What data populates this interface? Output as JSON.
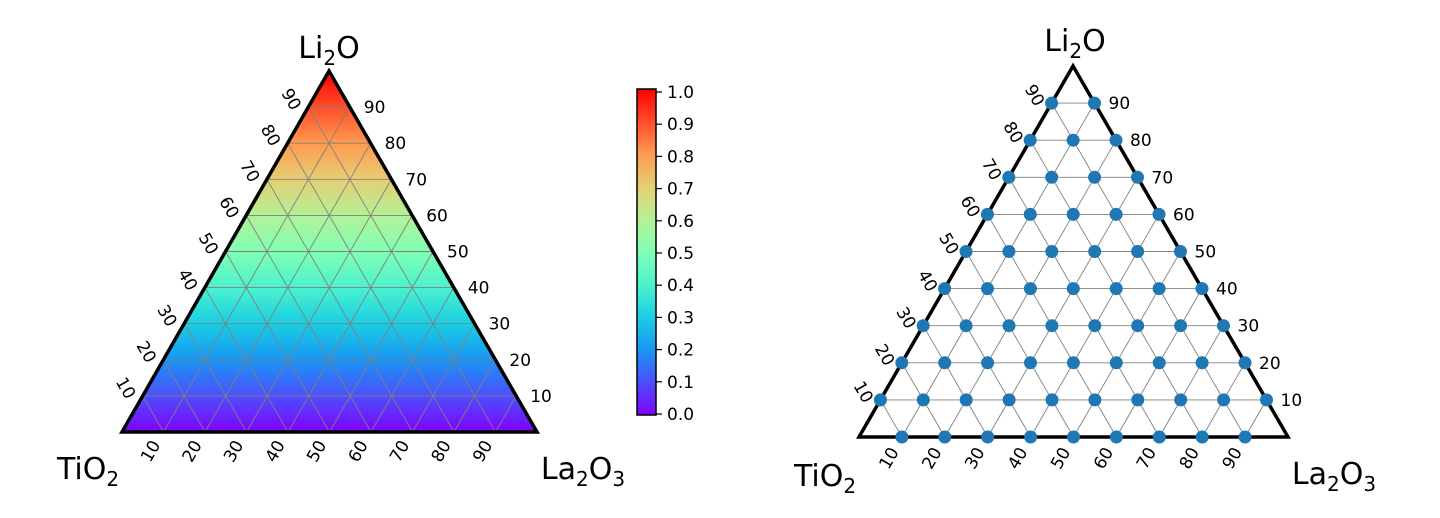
{
  "chart_data": [
    {
      "type": "heatmap",
      "title": "",
      "corner_labels": {
        "top": [
          "Li",
          "2",
          "O"
        ],
        "left": [
          "TiO",
          "2",
          ""
        ],
        "right": [
          "La",
          "2",
          "O",
          "3"
        ]
      },
      "ticks": [
        "10",
        "20",
        "30",
        "40",
        "50",
        "60",
        "70",
        "80",
        "90"
      ],
      "tick_values": [
        10,
        20,
        30,
        40,
        50,
        60,
        70,
        80,
        90
      ],
      "color_value": "Li2O fraction (0 at base to 1 at apex)",
      "colormap": "rainbow",
      "colormap_stops": [
        "#8000ff",
        "#4c4ffc",
        "#1996f3",
        "#1acee3",
        "#4cf2ce",
        "#80ffb4",
        "#b3f296",
        "#e6ce74",
        "#ff9a50",
        "#ff4e28",
        "#ff0000"
      ],
      "colorbar": {
        "ticks": [
          "0.0",
          "0.1",
          "0.2",
          "0.3",
          "0.4",
          "0.5",
          "0.6",
          "0.7",
          "0.8",
          "0.9",
          "1.0"
        ],
        "range": [
          0,
          1
        ]
      },
      "grid": true
    },
    {
      "type": "scatter",
      "title": "",
      "corner_labels": {
        "top": [
          "Li",
          "2",
          "O"
        ],
        "left": [
          "TiO",
          "2",
          ""
        ],
        "right": [
          "La",
          "2",
          "O",
          "3"
        ]
      },
      "ticks": [
        "10",
        "20",
        "30",
        "40",
        "50",
        "60",
        "70",
        "80",
        "90"
      ],
      "tick_values": [
        10,
        20,
        30,
        40,
        50,
        60,
        70,
        80,
        90
      ],
      "point_spacing": 10,
      "point_grid": "all compositions Li2O + La2O3 + TiO2 = 100 on a 10% grid, excluding pure corners and compositions with Li2O = 0 at the corner vertices",
      "point_color": "#1f77b4",
      "grid": true
    }
  ]
}
